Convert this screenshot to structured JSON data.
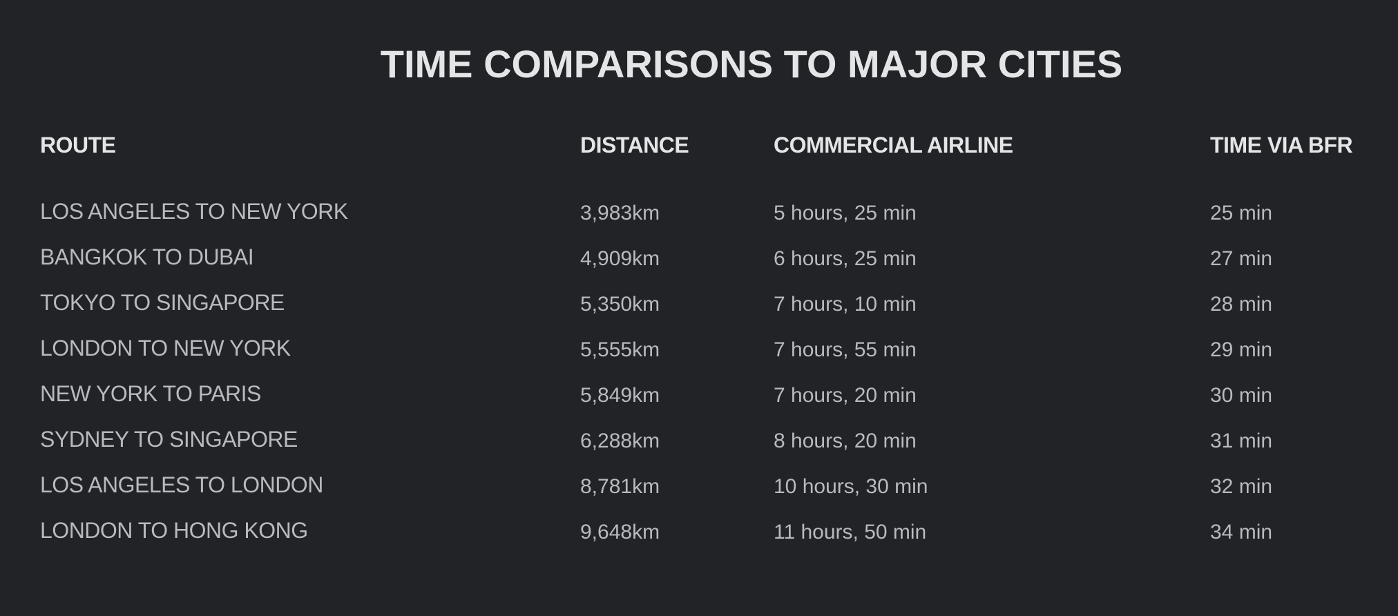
{
  "title": "TIME COMPARISONS TO MAJOR CITIES",
  "headers": {
    "route": "ROUTE",
    "distance": "DISTANCE",
    "airline": "COMMERCIAL AIRLINE",
    "bfr": "TIME VIA BFR"
  },
  "rows": [
    {
      "route": "LOS ANGELES TO NEW YORK",
      "distance": "3,983km",
      "airline": "5 hours, 25 min",
      "bfr": "25 min"
    },
    {
      "route": "BANGKOK TO DUBAI",
      "distance": "4,909km",
      "airline": "6 hours, 25 min",
      "bfr": "27 min"
    },
    {
      "route": "TOKYO TO SINGAPORE",
      "distance": "5,350km",
      "airline": "7 hours, 10 min",
      "bfr": "28 min"
    },
    {
      "route": "LONDON TO NEW YORK",
      "distance": "5,555km",
      "airline": "7 hours, 55 min",
      "bfr": "29 min"
    },
    {
      "route": "NEW YORK TO PARIS",
      "distance": "5,849km",
      "airline": "7 hours, 20 min",
      "bfr": "30 min"
    },
    {
      "route": "SYDNEY TO SINGAPORE",
      "distance": "6,288km",
      "airline": "8 hours, 20 min",
      "bfr": "31 min"
    },
    {
      "route": "LOS ANGELES TO LONDON",
      "distance": "8,781km",
      "airline": "10 hours, 30 min",
      "bfr": "32 min"
    },
    {
      "route": "LONDON TO HONG KONG",
      "distance": "9,648km",
      "airline": "11 hours, 50 min",
      "bfr": "34 min"
    }
  ],
  "colors": {
    "background": "#212326",
    "heading_text": "#e4e5e7",
    "body_text": "#b9babd"
  }
}
